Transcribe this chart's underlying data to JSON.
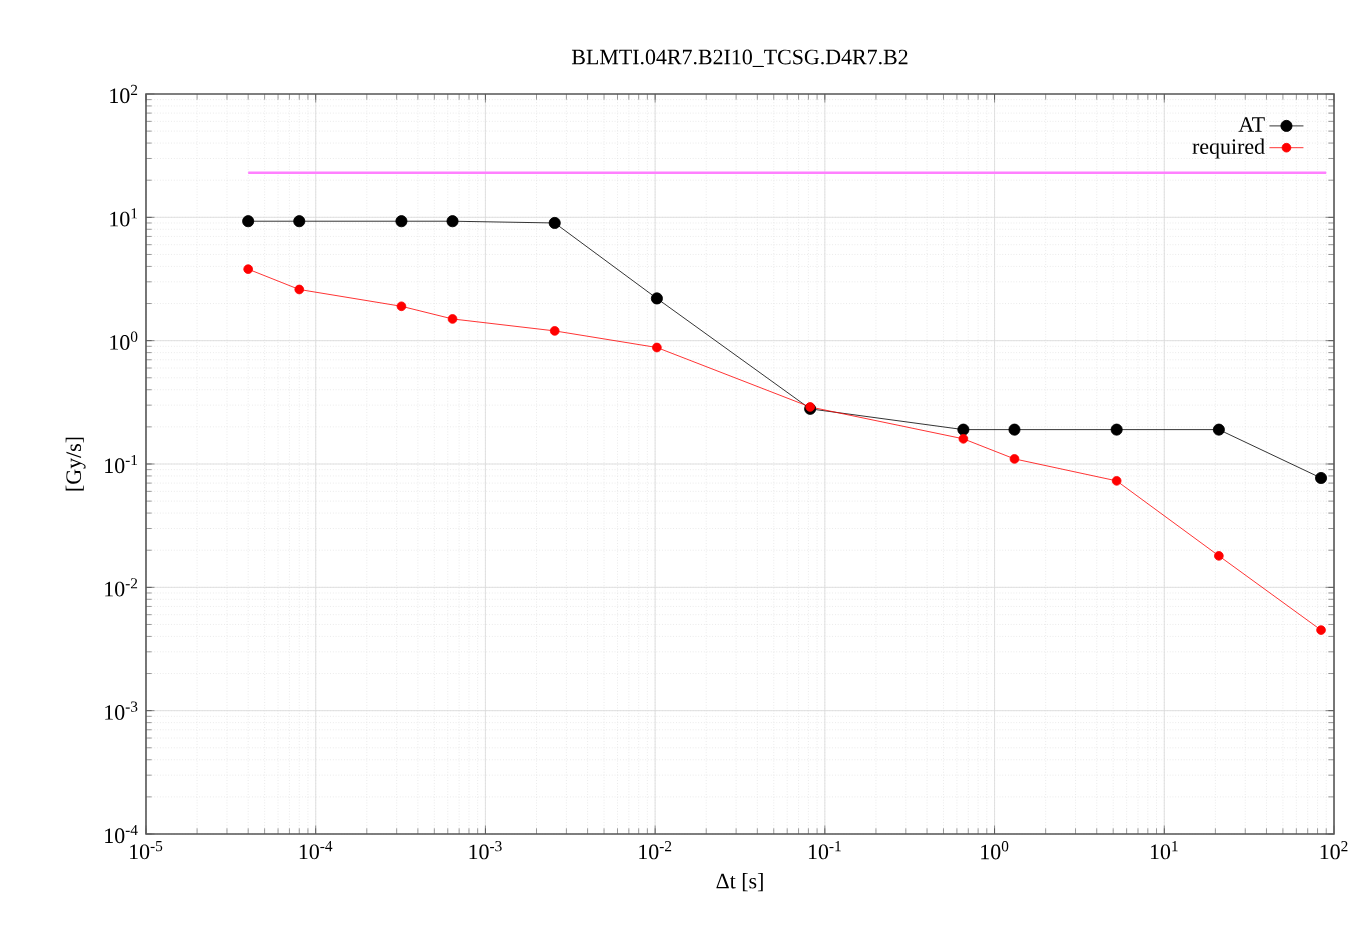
{
  "chart_data": {
    "type": "line",
    "title": "BLMTI.04R7.B2I10_TCSG.D4R7.B2",
    "xlabel": "Δt [s]",
    "ylabel": "[Gy/s]",
    "log": "xy",
    "grid": true,
    "legend": "top right",
    "marker": "circle",
    "line_style": "solid",
    "xlim": [
      1e-05,
      100
    ],
    "ylim": [
      0.0001,
      100
    ],
    "xticks": [
      {
        "value": 1e-05,
        "label": "10$^{-5}$"
      },
      {
        "value": 0.0001,
        "label": "10$^{-4}$"
      },
      {
        "value": 0.001,
        "label": "10$^{-3}$"
      },
      {
        "value": 0.01,
        "label": "10$^{-2}$"
      },
      {
        "value": 0.1,
        "label": "10$^{-1}$"
      },
      {
        "value": 1,
        "label": "10$^{0}$"
      },
      {
        "value": 10,
        "label": "10$^{1}$"
      },
      {
        "value": 100,
        "label": "10$^{2}$"
      }
    ],
    "yticks": [
      {
        "value": 0.0001,
        "label": "10$^{-4}$"
      },
      {
        "value": 0.001,
        "label": "10$^{-3}$"
      },
      {
        "value": 0.01,
        "label": "10$^{-2}$"
      },
      {
        "value": 0.1,
        "label": "10$^{-1}$"
      },
      {
        "value": 1,
        "label": "10$^{0}$"
      },
      {
        "value": 10,
        "label": "10$^{1}$"
      },
      {
        "value": 100,
        "label": "10$^{2}$"
      }
    ],
    "x": [
      4e-05,
      8e-05,
      0.00032,
      0.00064,
      0.00256,
      0.01024,
      0.08192,
      0.655,
      1.31,
      5.24,
      20.97,
      83.89
    ],
    "series": [
      {
        "name": "AT",
        "color": "#000000",
        "values": [
          9.3,
          9.3,
          9.3,
          9.3,
          9.0,
          2.2,
          0.28,
          0.19,
          0.19,
          0.19,
          0.19,
          0.077
        ]
      },
      {
        "name": "required",
        "color": "#ff0000",
        "values": [
          3.8,
          2.6,
          1.9,
          1.5,
          1.2,
          0.88,
          0.29,
          0.16,
          0.11,
          0.073,
          0.018,
          0.0045
        ]
      },
      {
        "color": "#ff80ff",
        "marker": "none",
        "x": [
          4e-05,
          90
        ],
        "values": [
          23,
          23
        ]
      }
    ]
  }
}
